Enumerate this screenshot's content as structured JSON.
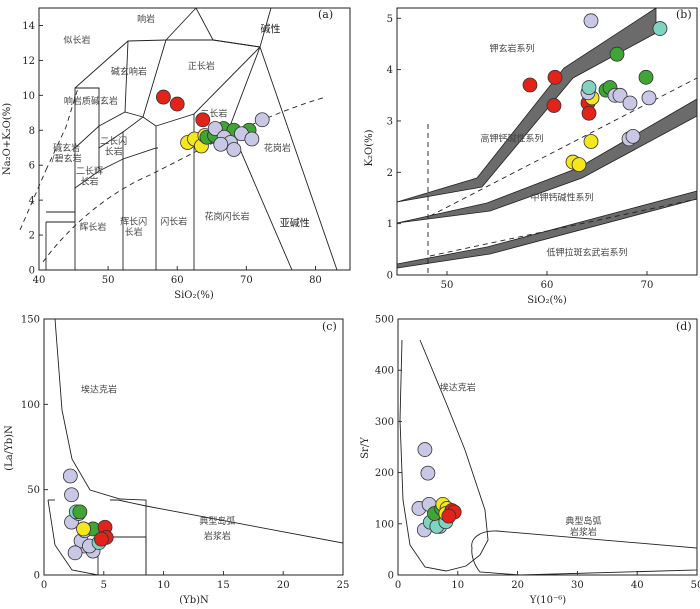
{
  "colors": {
    "red": "#e2231a",
    "yellow": "#f5e61e",
    "green": "#3fa535",
    "lavender": "#c8c8e6",
    "teal": "#7fd3c0",
    "band": "#6b6b6b"
  },
  "chart_data": [
    {
      "panel": "(a)",
      "type": "scatter",
      "xlabel": "SiO₂(%)",
      "ylabel": "Na₂O+K₂O(%)",
      "xlim": [
        40,
        85
      ],
      "ylim": [
        0,
        15
      ],
      "xticks": [
        "40",
        "50",
        "60",
        "70",
        "80"
      ],
      "yticks": [
        "0",
        "2",
        "4",
        "6",
        "8",
        "10",
        "12",
        "14"
      ],
      "field_labels": [
        {
          "text": "似长岩",
          "x": 45.5,
          "y": 13.0
        },
        {
          "text": "响岩",
          "x": 55.5,
          "y": 14.2
        },
        {
          "text": "碱性",
          "x": 73.5,
          "y": 13.6
        },
        {
          "text": "碱玄响岩",
          "x": 53.0,
          "y": 11.2
        },
        {
          "text": "正长岩",
          "x": 63.5,
          "y": 11.5
        },
        {
          "text": "响岩质碱玄岩",
          "x": 47.5,
          "y": 9.5
        },
        {
          "text": "二长闪",
          "x": 50.8,
          "y": 7.2
        },
        {
          "text": "长岩",
          "x": 50.8,
          "y": 6.6
        },
        {
          "text": "碱玄岩",
          "x": 44.0,
          "y": 6.8
        },
        {
          "text": "/碧玄岩",
          "x": 44.0,
          "y": 6.2
        },
        {
          "text": "二长辉",
          "x": 47.3,
          "y": 5.5
        },
        {
          "text": "长岩",
          "x": 47.3,
          "y": 4.9
        },
        {
          "text": "二长岩",
          "x": 65.3,
          "y": 8.8
        },
        {
          "text": "辉长岩",
          "x": 47.8,
          "y": 2.3
        },
        {
          "text": "辉长闪",
          "x": 53.7,
          "y": 2.6
        },
        {
          "text": "长岩",
          "x": 53.7,
          "y": 2.0
        },
        {
          "text": "闪长岩",
          "x": 59.5,
          "y": 2.6
        },
        {
          "text": "花岗闪长岩",
          "x": 67.2,
          "y": 2.9
        },
        {
          "text": "花岗岩",
          "x": 74.5,
          "y": 6.8
        },
        {
          "text": "亚碱性",
          "x": 77.0,
          "y": 2.5
        }
      ],
      "series": [
        {
          "color": "red",
          "points": [
            [
              58.0,
              9.9
            ],
            [
              60.0,
              9.5
            ],
            [
              63.7,
              8.6
            ]
          ]
        },
        {
          "color": "yellow",
          "points": [
            [
              61.5,
              7.3
            ],
            [
              62.5,
              7.5
            ],
            [
              63.5,
              7.1
            ],
            [
              64.0,
              7.7
            ]
          ]
        },
        {
          "color": "green",
          "points": [
            [
              64.3,
              7.6
            ],
            [
              65.4,
              7.7
            ],
            [
              66.7,
              8.1
            ],
            [
              68.2,
              8.0
            ],
            [
              70.4,
              8.0
            ]
          ]
        },
        {
          "color": "lavender",
          "points": [
            [
              65.5,
              8.1
            ],
            [
              66.8,
              7.6
            ],
            [
              67.7,
              7.3
            ],
            [
              68.2,
              6.9
            ],
            [
              69.3,
              7.8
            ],
            [
              70.8,
              7.5
            ],
            [
              72.3,
              8.6
            ],
            [
              66.3,
              7.2
            ]
          ]
        }
      ]
    },
    {
      "panel": "(b)",
      "type": "scatter",
      "xlabel": "SiO₂(%)",
      "ylabel": "K₂O(%)",
      "xlim": [
        45,
        75
      ],
      "ylim": [
        0,
        5.2
      ],
      "xticks": [
        "50",
        "60",
        "70"
      ],
      "yticks": [
        "0",
        "1",
        "2",
        "3",
        "4",
        "5"
      ],
      "field_labels": [
        {
          "text": "钾玄岩系列",
          "x": 56.5,
          "y": 4.35
        },
        {
          "text": "高钾钙碱性系列",
          "x": 56.5,
          "y": 2.6
        },
        {
          "text": "中钾钙碱性系列",
          "x": 61.5,
          "y": 1.45
        },
        {
          "text": "低钾拉斑玄武岩系列",
          "x": 64.0,
          "y": 0.38
        }
      ],
      "series": [
        {
          "color": "red",
          "points": [
            [
              58.3,
              3.7
            ],
            [
              60.8,
              3.85
            ],
            [
              60.7,
              3.3
            ],
            [
              64.1,
              3.35
            ],
            [
              64.2,
              3.15
            ]
          ]
        },
        {
          "color": "yellow",
          "points": [
            [
              62.6,
              2.2
            ],
            [
              63.2,
              2.15
            ],
            [
              64.4,
              2.6
            ],
            [
              64.5,
              3.45
            ]
          ]
        },
        {
          "color": "green",
          "points": [
            [
              65.9,
              3.6
            ],
            [
              66.3,
              3.65
            ],
            [
              67.0,
              4.3
            ],
            [
              69.9,
              3.85
            ]
          ]
        },
        {
          "color": "lavender",
          "points": [
            [
              64.4,
              4.95
            ],
            [
              64.1,
              3.55
            ],
            [
              66.8,
              3.5
            ],
            [
              67.3,
              3.5
            ],
            [
              68.3,
              3.35
            ],
            [
              70.2,
              3.45
            ],
            [
              68.2,
              2.65
            ],
            [
              68.6,
              2.7
            ]
          ]
        },
        {
          "color": "teal",
          "points": [
            [
              71.3,
              4.8
            ],
            [
              64.2,
              3.65
            ]
          ]
        }
      ]
    },
    {
      "panel": "(c)",
      "type": "scatter",
      "xlabel": "(Yb)N",
      "ylabel": "(La/Yb)N",
      "xlim": [
        0,
        25
      ],
      "ylim": [
        0,
        150
      ],
      "xticks": [
        "0",
        "5",
        "10",
        "15",
        "20",
        "25"
      ],
      "yticks": [
        "0",
        "50",
        "100",
        "150"
      ],
      "field_labels": [
        {
          "text": "埃达克岩",
          "x": 4.6,
          "y": 107
        },
        {
          "text": "典型岛弧",
          "x": 14.5,
          "y": 30
        },
        {
          "text": "岩浆岩",
          "x": 14.5,
          "y": 21
        }
      ],
      "series": [
        {
          "color": "lavender",
          "points": [
            [
              2.2,
              58
            ],
            [
              2.3,
              47
            ],
            [
              2.3,
              31
            ],
            [
              2.9,
              36
            ],
            [
              3.4,
              17
            ],
            [
              3.1,
              20
            ],
            [
              2.6,
              13
            ],
            [
              4.1,
              14
            ],
            [
              3.8,
              17
            ],
            [
              3.4,
              26
            ]
          ]
        },
        {
          "color": "teal",
          "points": [
            [
              2.7,
              37
            ],
            [
              4.6,
              19
            ]
          ]
        },
        {
          "color": "green",
          "points": [
            [
              3.0,
              37
            ],
            [
              4.1,
              27
            ]
          ]
        },
        {
          "color": "yellow",
          "points": [
            [
              3.3,
              27
            ]
          ]
        },
        {
          "color": "red",
          "points": [
            [
              5.1,
              28
            ],
            [
              5.2,
              22
            ],
            [
              4.8,
              21
            ]
          ]
        }
      ]
    },
    {
      "panel": "(d)",
      "type": "scatter",
      "xlabel": "Y(10⁻⁶)",
      "ylabel": "Sr/Y",
      "xlim": [
        0,
        50
      ],
      "ylim": [
        0,
        500
      ],
      "xticks": [
        "0",
        "10",
        "20",
        "30",
        "40",
        "50"
      ],
      "yticks": [
        "0",
        "100",
        "200",
        "300",
        "400",
        "500"
      ],
      "field_labels": [
        {
          "text": "埃达克岩",
          "x": 10.0,
          "y": 360
        },
        {
          "text": "典型岛弧",
          "x": 31.0,
          "y": 100
        },
        {
          "text": "岩浆岩",
          "x": 31.0,
          "y": 78
        }
      ],
      "series": [
        {
          "color": "lavender",
          "points": [
            [
              4.5,
              245
            ],
            [
              5.0,
              199
            ],
            [
              3.5,
              130
            ],
            [
              5.2,
              138
            ],
            [
              4.4,
              88
            ],
            [
              7.0,
              95
            ],
            [
              7.2,
              117
            ]
          ]
        },
        {
          "color": "teal",
          "points": [
            [
              5.4,
              103
            ],
            [
              6.5,
              95
            ],
            [
              8.0,
              104
            ]
          ]
        },
        {
          "color": "green",
          "points": [
            [
              6.1,
              120
            ],
            [
              7.3,
              130
            ]
          ]
        },
        {
          "color": "yellow",
          "points": [
            [
              7.5,
              138
            ],
            [
              8.2,
              130
            ],
            [
              8.0,
              120
            ]
          ]
        },
        {
          "color": "red",
          "points": [
            [
              9.0,
              126
            ],
            [
              9.4,
              123
            ],
            [
              8.5,
              115
            ]
          ]
        }
      ]
    }
  ]
}
